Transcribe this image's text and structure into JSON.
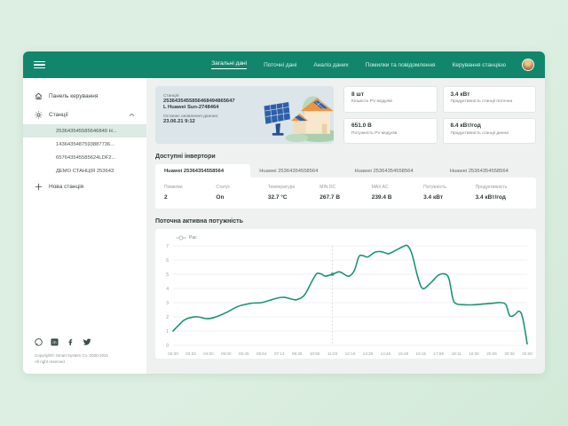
{
  "colors": {
    "accent": "#12866c",
    "page_background": "#ddefe2",
    "content_background": "#eff1f0",
    "station_card": "#dbe5ea",
    "selected_item": "#dcebe4",
    "chart_line": "#1b9376"
  },
  "nav": {
    "tabs": [
      {
        "label": "Загальні дані",
        "active": true
      },
      {
        "label": "Поточні дані",
        "active": false
      },
      {
        "label": "Аналіз даних",
        "active": false
      },
      {
        "label": "Помилки та повідомлення",
        "active": false
      },
      {
        "label": "Керування станцією",
        "active": false
      }
    ]
  },
  "sidebar": {
    "dashboard_label": "Панель керування",
    "stations_label": "Станції",
    "stations": [
      {
        "label": "253643545585646849 H...",
        "selected": true
      },
      {
        "label": "1436435487593887736...",
        "selected": false
      },
      {
        "label": "657643545585624LDF2...",
        "selected": false
      },
      {
        "label": "ДЕМО СТАНЦІЯ 253643",
        "selected": false
      }
    ],
    "new_station_label": "Нова станція",
    "copyright_line1": "Copyright© Smart System Co. 2020-2021",
    "copyright_line2": "All right reserved"
  },
  "station_card": {
    "label": "Станція:",
    "id": "2536435455856468494865647",
    "model": "L Huawei Sun-2748464",
    "updated_label": "Останнє оновлення данних:",
    "updated_value": "23.06.21 9:12"
  },
  "stats": [
    {
      "value": "8 шт",
      "label": "Кількість PV модулів"
    },
    {
      "value": "3.4 кВт",
      "label": "Продуктивність станції поточна"
    },
    {
      "value": "651.0 В",
      "label": "Потужність PV модулів"
    },
    {
      "value": "8.4 кВт/год",
      "label": "Продуктивність станції денна"
    }
  ],
  "inverters": {
    "title": "Доступні інвертори",
    "tabs": [
      "Huawei 25364354558564",
      "Huawei 25364354558564",
      "Huawei 25364354558564",
      "Huawei 25364354558564"
    ]
  },
  "inverter_table": {
    "columns": [
      "Помилки",
      "Статус",
      "Температура",
      "MIN DC",
      "MAX AC",
      "Потужність",
      "Продуктивність"
    ],
    "values": [
      "2",
      "On",
      "32.7 °C",
      "267.7 В",
      "239.4 В",
      "3.4 кВт",
      "3.4 кВт/год"
    ]
  },
  "chart_section": {
    "title": "Поточна активна потужність"
  },
  "chart_data": {
    "type": "line",
    "title": "Поточна активна потужність",
    "xlabel": "",
    "ylabel": "",
    "ylim": [
      0,
      7
    ],
    "yticks": [
      0,
      1,
      2,
      3,
      4,
      5,
      6,
      7
    ],
    "grid": "horizontal",
    "legend_position": "top-left",
    "x_labels": [
      "03:30",
      "03:33",
      "04:00",
      "05:00",
      "05:45",
      "06:54",
      "07:13",
      "09:36",
      "10:50",
      "11:03",
      "12:16",
      "13:38",
      "14:46",
      "15:49",
      "16:15",
      "17:56",
      "18:11",
      "19:30",
      "20:06",
      "20:30",
      "22:00"
    ],
    "series": [
      {
        "name": "Pac",
        "color": "#1b9376",
        "points": [
          [
            0,
            1.0
          ],
          [
            0.6,
            1.75
          ],
          [
            1,
            1.95
          ],
          [
            1.4,
            2.0
          ],
          [
            1.9,
            1.87
          ],
          [
            2.3,
            1.95
          ],
          [
            3,
            2.3
          ],
          [
            3.6,
            2.7
          ],
          [
            4,
            2.85
          ],
          [
            4.5,
            2.97
          ],
          [
            5,
            3.0
          ],
          [
            5.5,
            3.18
          ],
          [
            6,
            3.35
          ],
          [
            6.3,
            3.37
          ],
          [
            6.8,
            3.22
          ],
          [
            7,
            3.22
          ],
          [
            7.4,
            3.5
          ],
          [
            7.8,
            4.4
          ],
          [
            8,
            4.85
          ],
          [
            8.15,
            5.07
          ],
          [
            8.4,
            5.0
          ],
          [
            8.6,
            4.87
          ],
          [
            9,
            5.0
          ],
          [
            9.4,
            5.17
          ],
          [
            9.8,
            4.9
          ],
          [
            10,
            4.9
          ],
          [
            10.25,
            5.3
          ],
          [
            10.5,
            6.25
          ],
          [
            10.75,
            6.3
          ],
          [
            11,
            6.22
          ],
          [
            11.4,
            6.55
          ],
          [
            11.7,
            6.6
          ],
          [
            12,
            6.5
          ],
          [
            12.2,
            6.45
          ],
          [
            12.6,
            6.7
          ],
          [
            13,
            6.95
          ],
          [
            13.25,
            7.0
          ],
          [
            13.5,
            6.4
          ],
          [
            13.8,
            4.9
          ],
          [
            14,
            4.15
          ],
          [
            14.2,
            4.0
          ],
          [
            14.6,
            4.45
          ],
          [
            15,
            4.95
          ],
          [
            15.4,
            5.0
          ],
          [
            15.6,
            4.6
          ],
          [
            15.8,
            3.3
          ],
          [
            16,
            2.92
          ],
          [
            16.5,
            2.85
          ],
          [
            17,
            2.85
          ],
          [
            17.5,
            2.9
          ],
          [
            18,
            2.95
          ],
          [
            18.5,
            3.0
          ],
          [
            18.8,
            2.85
          ],
          [
            19,
            2.1
          ],
          [
            19.25,
            2.1
          ],
          [
            19.55,
            2.4
          ],
          [
            19.75,
            1.9
          ],
          [
            20,
            0.1
          ]
        ]
      }
    ],
    "marker": {
      "x_index": 9,
      "value": 5.0,
      "label": "11:03"
    }
  }
}
